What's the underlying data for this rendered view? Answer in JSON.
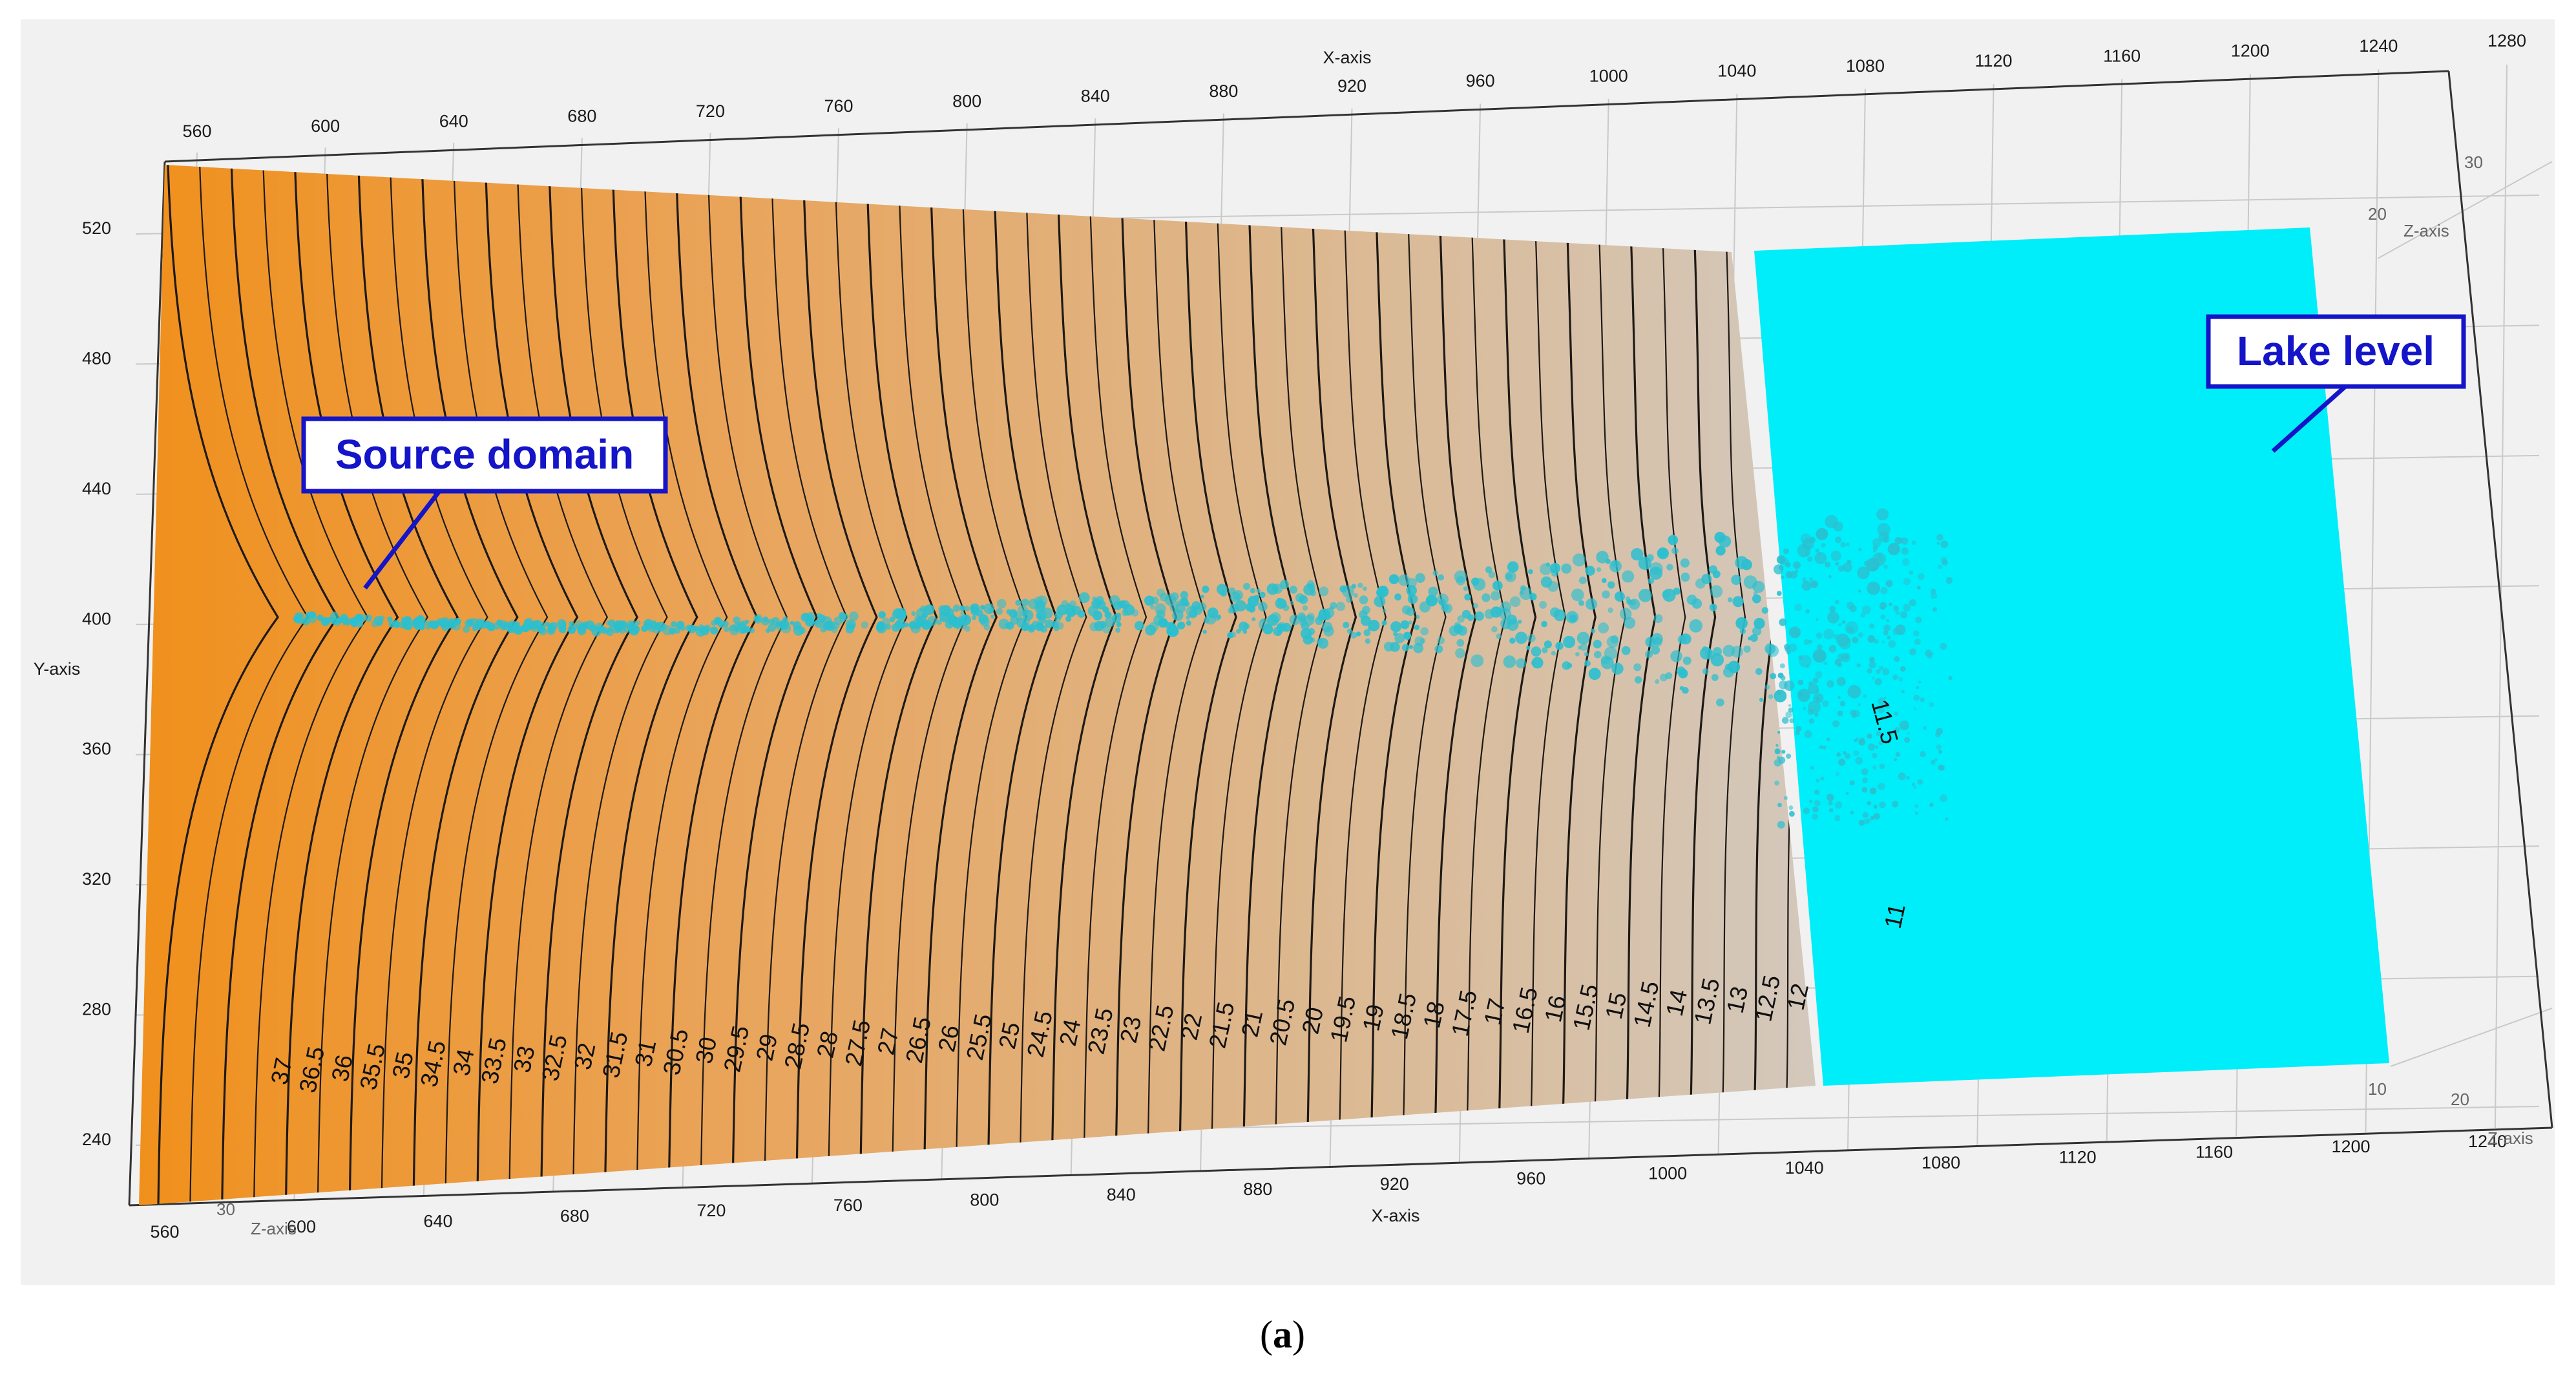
{
  "chart_data": {
    "type": "surface-3d",
    "axes": {
      "x": {
        "label": "X-axis",
        "ticks_top": [
          "560",
          "600",
          "640",
          "680",
          "720",
          "760",
          "800",
          "840",
          "880",
          "920",
          "960",
          "1000",
          "1040",
          "1080",
          "1120",
          "1160",
          "1200",
          "1240",
          "1280"
        ],
        "ticks_bottom": [
          "560",
          "600",
          "640",
          "680",
          "720",
          "760",
          "800",
          "840",
          "880",
          "920",
          "960",
          "1000",
          "1040",
          "1080",
          "1120",
          "1160",
          "1200",
          "1240"
        ],
        "range": [
          560,
          1280
        ]
      },
      "y": {
        "label": "Y-axis",
        "ticks": [
          "240",
          "280",
          "320",
          "360",
          "400",
          "440",
          "480",
          "520"
        ],
        "range": [
          230,
          540
        ]
      },
      "z": {
        "label": "Z-axis",
        "ticks_front": [
          "10",
          "20"
        ],
        "ticks_back": [
          "20",
          "30"
        ],
        "ticks_left": [
          "30"
        ]
      }
    },
    "contours": {
      "levels": [
        37,
        36.5,
        36,
        35.5,
        35,
        34.5,
        34,
        33.5,
        33,
        32.5,
        32,
        31.5,
        31,
        30.5,
        30,
        29.5,
        29,
        28.5,
        28,
        27.5,
        27,
        26.5,
        26,
        25.5,
        25,
        24.5,
        24,
        23.5,
        23,
        22.5,
        22,
        21.5,
        21,
        20.5,
        20,
        19.5,
        19,
        18.5,
        18,
        17.5,
        17,
        16.5,
        16,
        15.5,
        15,
        14.5,
        14,
        13.5,
        13,
        12.5,
        12,
        11.5,
        11
      ],
      "labels": [
        "37",
        "36.5",
        "36",
        "35.5",
        "35",
        "34.5",
        "34",
        "33.5",
        "33",
        "32.5",
        "32",
        "31.5",
        "31",
        "30.5",
        "30",
        "29.5",
        "29",
        "28.5",
        "28",
        "27.5",
        "27",
        "26.5",
        "26",
        "25.5",
        "25",
        "24.5",
        "24",
        "23.5",
        "23",
        "22.5",
        "22",
        "21.5",
        "21",
        "20.5",
        "20",
        "19.5",
        "19",
        "18.5",
        "18",
        "17.5",
        "17",
        "16.5",
        "16",
        "15.5",
        "15",
        "14.5",
        "14",
        "13.5",
        "13",
        "12.5",
        "12",
        "11.5",
        "11"
      ]
    },
    "annotations": {
      "source": "Source domain",
      "lake": "Lake level"
    },
    "colors": {
      "terrain_high": "#f29020",
      "terrain_low": "#d5c6b5",
      "lake": "#00eefa",
      "particles": "#2bbfcf",
      "callout_border": "#1414c8",
      "callout_text": "#1414c8"
    },
    "grid": true
  },
  "caption": {
    "open": "(",
    "letter": "a",
    "close": ")"
  }
}
